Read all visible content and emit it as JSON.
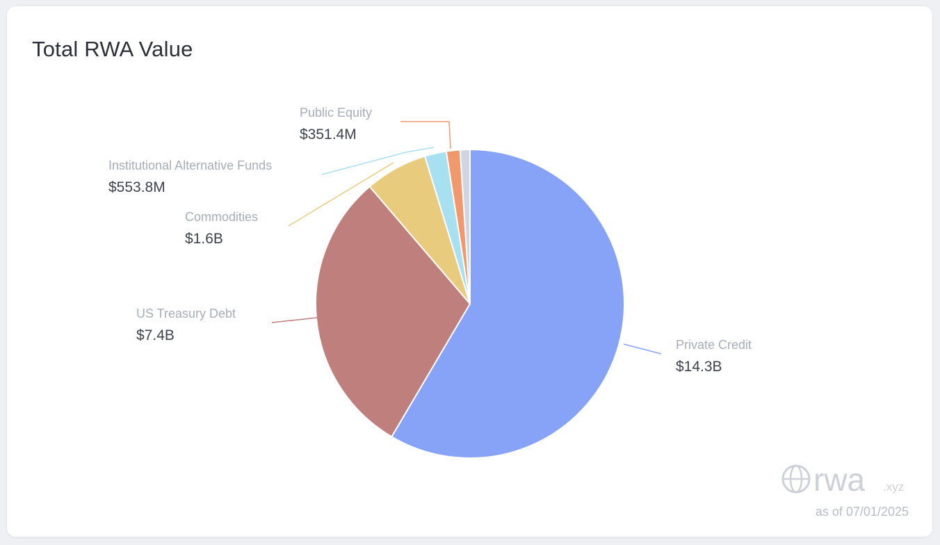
{
  "header": {
    "title": "Total RWA Value"
  },
  "chart_data": {
    "type": "pie",
    "slices": [
      {
        "name": "Private Credit",
        "label": "$14.3B",
        "value": 14300,
        "color": "#86a3f7"
      },
      {
        "name": "US Treasury Debt",
        "label": "$7.4B",
        "value": 7400,
        "color": "#bf7f7c"
      },
      {
        "name": "Commodities",
        "label": "$1.6B",
        "value": 1600,
        "color": "#e9cb7e"
      },
      {
        "name": "Institutional Alternative Funds",
        "label": "$553.8M",
        "value": 553.8,
        "color": "#a7e0f1"
      },
      {
        "name": "Public Equity",
        "label": "$351.4M",
        "value": 351.4,
        "color": "#f1996c"
      },
      {
        "name": "",
        "label": "",
        "value": 250,
        "color": "#d0d6e1"
      }
    ]
  },
  "watermark": {
    "brand": "rwa",
    "suffix": ".xyz",
    "as_of": "as of 07/01/2025"
  }
}
